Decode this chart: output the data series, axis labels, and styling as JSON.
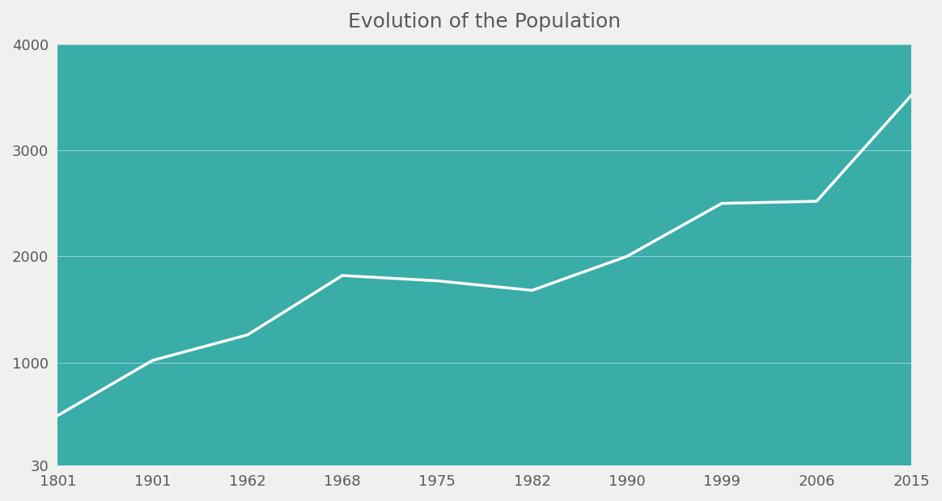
{
  "title": "Evolution of the Population",
  "x_indices": [
    0,
    1,
    2,
    3,
    4,
    5,
    6,
    7,
    8,
    9
  ],
  "y_values": [
    500,
    1020,
    1260,
    1820,
    1770,
    1680,
    2000,
    2500,
    2520,
    3520
  ],
  "x_tick_labels": [
    "1801",
    "1901",
    "1962",
    "1968",
    "1975",
    "1982",
    "1990",
    "1999",
    "2006",
    "2015"
  ],
  "y_ticks": [
    30,
    1000,
    2000,
    3000,
    4000
  ],
  "y_tick_labels": [
    "30",
    "1000",
    "2000",
    "3000",
    "4000"
  ],
  "ylim": [
    30,
    4000
  ],
  "background_color": "#3aada8",
  "fig_background_color": "#f0f0ee",
  "line_color": "#ffffff",
  "line_width": 2.5,
  "grid_color": "#ffffff",
  "grid_alpha": 0.45,
  "title_color": "#5a5a5a",
  "title_fontsize": 18,
  "tick_label_color": "#5a5a5a",
  "tick_fontsize": 13
}
